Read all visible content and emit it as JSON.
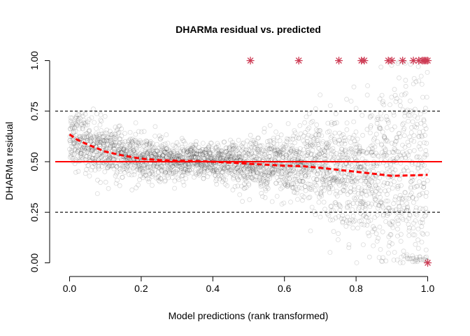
{
  "chart_data": {
    "type": "scatter",
    "title": "DHARMa residual vs. predicted",
    "xlabel": "Model predictions (rank transformed)",
    "ylabel": "DHARMa residual",
    "xlim": [
      -0.04,
      1.04
    ],
    "ylim": [
      -0.04,
      1.04
    ],
    "x_ticks": [
      {
        "value": 0.0,
        "label": "0.0"
      },
      {
        "value": 0.2,
        "label": "0.2"
      },
      {
        "value": 0.4,
        "label": "0.4"
      },
      {
        "value": 0.6,
        "label": "0.6"
      },
      {
        "value": 0.8,
        "label": "0.8"
      },
      {
        "value": 1.0,
        "label": "1.0"
      }
    ],
    "y_ticks": [
      {
        "value": 0.0,
        "label": "0.00"
      },
      {
        "value": 0.25,
        "label": "0.25"
      },
      {
        "value": 0.5,
        "label": "0.50"
      },
      {
        "value": 0.75,
        "label": "0.75"
      },
      {
        "value": 1.0,
        "label": "1.00"
      }
    ],
    "reference_lines": [
      {
        "y": 0.25,
        "style": "dashed",
        "color": "#000000"
      },
      {
        "y": 0.5,
        "style": "solid",
        "color": "#ff0000"
      },
      {
        "y": 0.75,
        "style": "dashed",
        "color": "#000000"
      }
    ],
    "smooth_fit": {
      "style": "dashed",
      "color": "#ff0000",
      "x": [
        0.0,
        0.02,
        0.05,
        0.1,
        0.15,
        0.2,
        0.25,
        0.3,
        0.35,
        0.4,
        0.45,
        0.5,
        0.55,
        0.6,
        0.65,
        0.7,
        0.75,
        0.8,
        0.85,
        0.9,
        0.95,
        1.0
      ],
      "y": [
        0.635,
        0.61,
        0.585,
        0.55,
        0.53,
        0.515,
        0.508,
        0.505,
        0.503,
        0.5,
        0.495,
        0.49,
        0.485,
        0.48,
        0.478,
        0.47,
        0.46,
        0.45,
        0.44,
        0.43,
        0.432,
        0.435
      ]
    },
    "outliers": {
      "marker": "asterisk",
      "color": "#cd3b54",
      "x": [
        0.505,
        0.64,
        0.752,
        0.815,
        0.823,
        0.89,
        0.9,
        0.93,
        0.96,
        0.975,
        0.985,
        0.99,
        0.995,
        1.0,
        1.0
      ],
      "y": [
        1.0,
        1.0,
        1.0,
        1.0,
        1.0,
        1.0,
        1.0,
        1.0,
        1.0,
        1.0,
        1.0,
        1.0,
        1.0,
        1.0,
        0.0
      ]
    },
    "residual_cloud": {
      "marker": "open-circle",
      "color": "#000000",
      "n_points": 3000,
      "center_fn": "smooth_fit",
      "spread": [
        {
          "x": 0.0,
          "sd": 0.07
        },
        {
          "x": 0.4,
          "sd": 0.04
        },
        {
          "x": 0.6,
          "sd": 0.08
        },
        {
          "x": 0.8,
          "sd": 0.15
        },
        {
          "x": 1.0,
          "sd": 0.3
        }
      ]
    }
  }
}
